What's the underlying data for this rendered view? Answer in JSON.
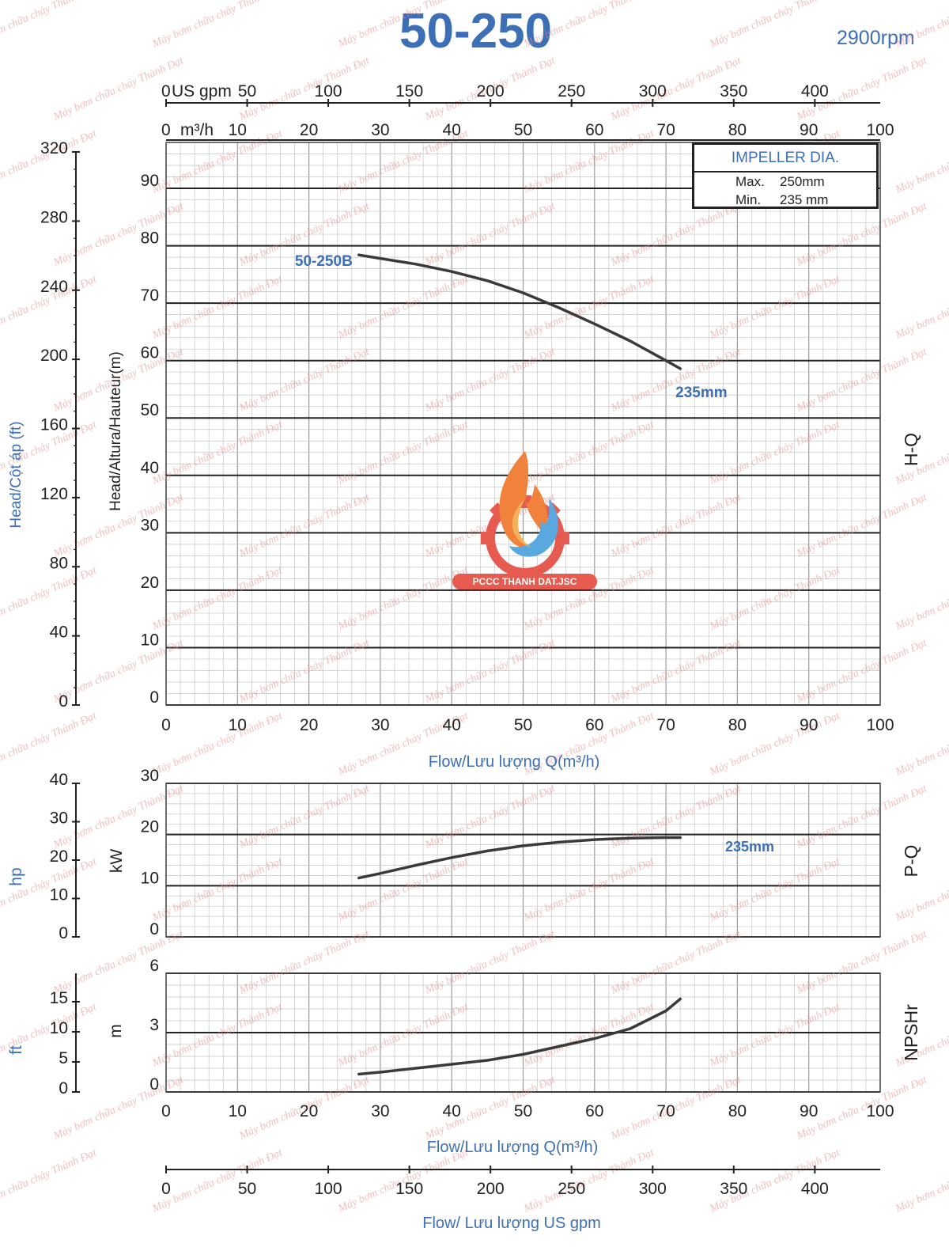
{
  "header": {
    "title": "50-250",
    "speed": "2900rpm"
  },
  "impeller": {
    "heading": "IMPELLER DIA.",
    "max_label": "Max.",
    "max_value": "250mm",
    "min_label": "Min.",
    "min_value": "235 mm"
  },
  "logo": {
    "text": "PCCC THANH DAT.JSC"
  },
  "watermark": "Máy bơm chữa cháy Thành Đạt",
  "colors": {
    "accent": "#3d6fb6",
    "curve": "#3a3a3a",
    "major_grid": "#222222",
    "minor_grid": "#c4c4c4"
  },
  "chart_data": [
    {
      "id": "hq",
      "type": "line",
      "title": "H-Q",
      "xlabel": "Flow/Lưu lượng Q(m³/h)",
      "ylabel": "Head/Altura/Hauteur(m)",
      "secondary_ylabel": "Head/Cột áp (ft)",
      "xlim": [
        0,
        100
      ],
      "ylim": [
        0,
        98
      ],
      "x_ticks": [
        "0",
        "10",
        "20",
        "30",
        "40",
        "50",
        "60",
        "70",
        "80",
        "90",
        "100"
      ],
      "y_ticks": [
        "0",
        "10",
        "20",
        "30",
        "40",
        "50",
        "60",
        "70",
        "80",
        "90"
      ],
      "ft_ticks": [
        "0",
        "40",
        "80",
        "120",
        "160",
        "200",
        "240",
        "280",
        "320"
      ],
      "top_axis_m3h_ticks": [
        "0",
        "10",
        "20",
        "30",
        "40",
        "50",
        "60",
        "70",
        "80",
        "90",
        "100"
      ],
      "top_axis_m3h_unit": "m³/h",
      "top_axis_gpm_ticks": [
        "0",
        "50",
        "100",
        "150",
        "200",
        "250",
        "300",
        "350",
        "400"
      ],
      "top_axis_gpm_unit": "US gpm",
      "series": [
        {
          "name": "50-250B",
          "end_label": "235mm",
          "x": [
            27,
            30,
            35,
            40,
            45,
            50,
            55,
            60,
            65,
            70,
            72
          ],
          "y": [
            78.4,
            77.8,
            76.8,
            75.5,
            73.9,
            71.8,
            69.2,
            66.4,
            63.4,
            60.0,
            58.6
          ]
        }
      ]
    },
    {
      "id": "pq",
      "type": "line",
      "title": "P-Q",
      "xlabel": "",
      "ylabel": "kW",
      "secondary_ylabel": "hp",
      "xlim": [
        0,
        100
      ],
      "ylim": [
        0,
        30
      ],
      "y_ticks": [
        "0",
        "10",
        "20",
        "30"
      ],
      "hp_ticks": [
        "0",
        "10",
        "20",
        "30",
        "40"
      ],
      "series": [
        {
          "name": "235mm",
          "x": [
            27,
            30,
            35,
            40,
            45,
            50,
            55,
            60,
            65,
            70,
            72
          ],
          "y": [
            11.5,
            12.4,
            14.0,
            15.5,
            16.8,
            17.8,
            18.5,
            19.0,
            19.3,
            19.4,
            19.4
          ]
        }
      ]
    },
    {
      "id": "npsh",
      "type": "line",
      "title": "NPSHr",
      "xlabel": "Flow/Lưu lượng Q(m³/h)",
      "ylabel": "m",
      "secondary_ylabel": "ft",
      "xlim": [
        0,
        100
      ],
      "ylim": [
        0,
        6
      ],
      "x_ticks": [
        "0",
        "10",
        "20",
        "30",
        "40",
        "50",
        "60",
        "70",
        "80",
        "90",
        "100"
      ],
      "y_ticks": [
        "0",
        "3",
        "6"
      ],
      "ft_ticks": [
        "0",
        "5",
        "10",
        "15"
      ],
      "series": [
        {
          "name": "NPSHr",
          "x": [
            27,
            30,
            35,
            40,
            45,
            50,
            55,
            60,
            65,
            70,
            72
          ],
          "y": [
            0.9,
            1.0,
            1.2,
            1.4,
            1.6,
            1.9,
            2.3,
            2.7,
            3.2,
            4.1,
            4.7
          ]
        }
      ]
    },
    {
      "id": "gpm-axis",
      "type": "axis",
      "xlabel": "Flow/ Lưu lượng US gpm",
      "ticks": [
        "0",
        "50",
        "100",
        "150",
        "200",
        "250",
        "300",
        "350",
        "400"
      ]
    }
  ]
}
